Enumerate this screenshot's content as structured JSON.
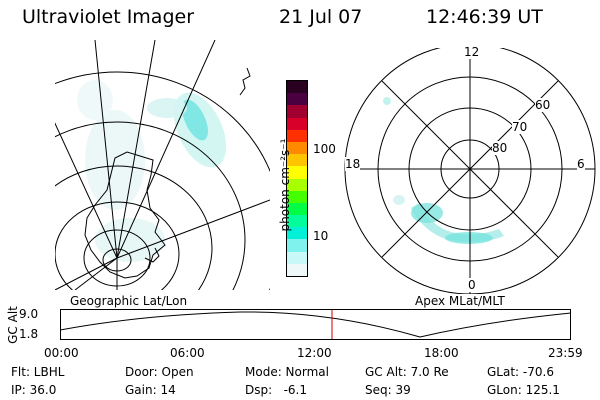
{
  "header": {
    "title": "Ultraviolet Imager",
    "date": "21 Jul 07",
    "time": "12:46:39 UT"
  },
  "colorbar": {
    "unit": "photon cm⁻²s⁻¹",
    "ticks": [
      "100",
      "10"
    ],
    "colors": [
      "#2a0020",
      "#4a0040",
      "#a00030",
      "#d8002a",
      "#ff3000",
      "#ff8a00",
      "#ffc400",
      "#ffff00",
      "#a8ff00",
      "#44ff00",
      "#00ff44",
      "#00ff9a",
      "#00f0d8",
      "#7ff2ee",
      "#c8f8f8",
      "#eef8f8"
    ]
  },
  "geo_panel": {
    "label": "Geographic Lat/Lon"
  },
  "polar_panel": {
    "label": "Apex MLat/MLT",
    "mlt_labels": {
      "top": "12",
      "left": "18",
      "right": "6",
      "bottom": "0"
    },
    "lat_labels": [
      "60",
      "70",
      "80"
    ]
  },
  "altitude_plot": {
    "ylabel": "GC Alt",
    "yticks": [
      "9.0",
      "1.8"
    ],
    "xticks": [
      "00:00",
      "06:00",
      "12:00",
      "18:00",
      "23:59"
    ],
    "current_time_marker": "12:46"
  },
  "status": {
    "flt": "Flt: LBHL",
    "door": "Door: Open",
    "mode": "Mode: Normal",
    "gcalt": "GC Alt: 7.0 Re",
    "glat": "GLat: -70.6",
    "ip": "IP: 36.0",
    "gain": "Gain: 14",
    "dsp": "Dsp:   -6.1",
    "seq": "Seq: 39",
    "glon": "GLon: 125.1"
  }
}
